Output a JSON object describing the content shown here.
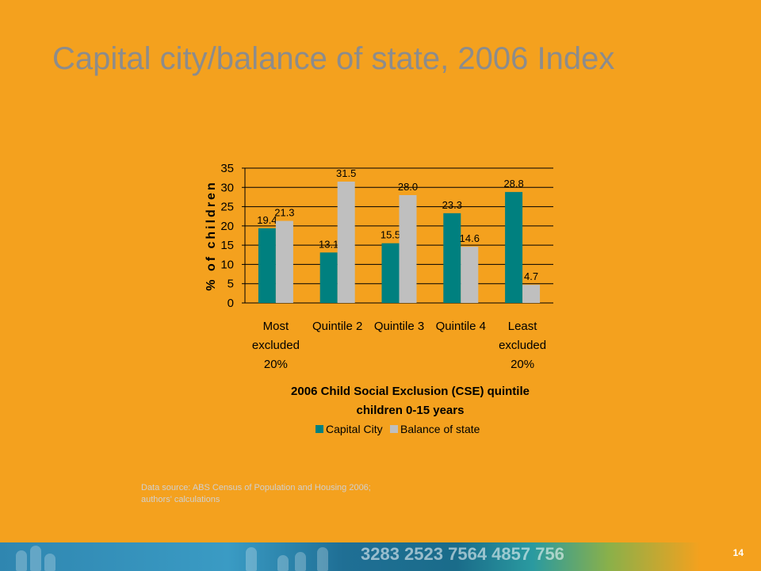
{
  "slide": {
    "title": "Capital city/balance of state, 2006 Index",
    "source_line1": "Data source: ABS Census of Population and Housing 2006;",
    "source_line2": "authors' calculations",
    "page_number": "14",
    "footer_numbers": "3283 2523 7564 4857 756"
  },
  "colors": {
    "background": "#F4A11E",
    "capital_city": "#00807F",
    "balance_of_state": "#BFBFBF",
    "title": "#8C8C8C"
  },
  "chart_data": {
    "type": "bar",
    "categories": [
      [
        "Most",
        "excluded",
        "20%"
      ],
      [
        "Quintile 2"
      ],
      [
        "Quintile 3"
      ],
      [
        "Quintile 4"
      ],
      [
        "Least",
        "excluded",
        "20%"
      ]
    ],
    "series": [
      {
        "name": "Capital City",
        "values": [
          19.4,
          13.1,
          15.5,
          23.3,
          28.8
        ],
        "labels": [
          "19.4",
          "13.1",
          "15.5",
          "23.3",
          "28.8"
        ]
      },
      {
        "name": "Balance of state",
        "values": [
          21.3,
          31.5,
          28.0,
          14.6,
          4.7
        ],
        "labels": [
          "21.3",
          "31.5",
          "28.0",
          "14.6",
          "4.7"
        ]
      }
    ],
    "xlabel_line1": "2006 Child Social Exclusion (CSE) quintile",
    "xlabel_line2": "children 0-15 years",
    "ylabel": "% of children",
    "ylim": [
      0,
      35
    ],
    "yticks": [
      0,
      5,
      10,
      15,
      20,
      25,
      30,
      35
    ],
    "grid": true,
    "legend_position": "bottom"
  }
}
